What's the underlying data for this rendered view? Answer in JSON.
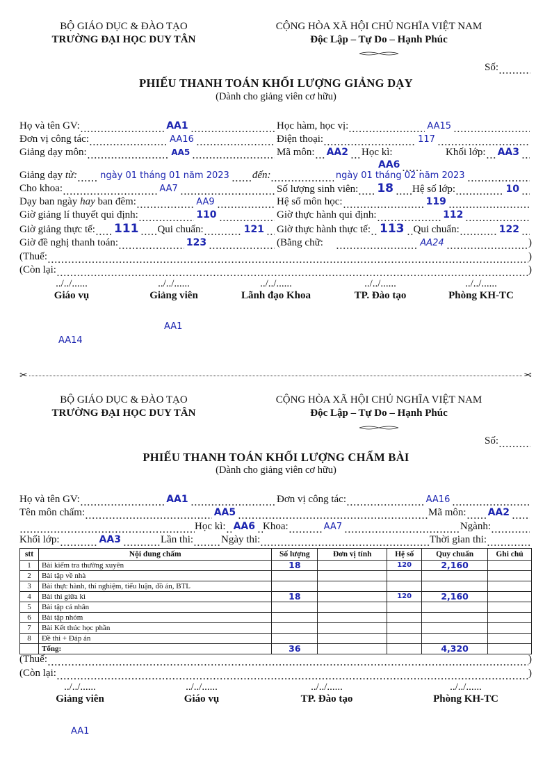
{
  "form1": {
    "header_left": {
      "ministry": "BỘ GIÁO DỤC & ĐÀO TẠO",
      "school": "TRƯỜNG ĐẠI HỌC DUY TÂN"
    },
    "header_right": {
      "country": "CỘNG HÒA XÃ HỘI CHỦ NGHĨA VIỆT NAM",
      "motto": "Độc Lập – Tự Do – Hạnh Phúc"
    },
    "so_label": "Số:",
    "title": "PHIẾU THANH TOÁN KHỐI LƯỢNG GIẢNG DẠY",
    "subtitle": "(Dành cho giảng viên cơ hữu)",
    "fields": {
      "ho_ten_label": "Họ và tên GV:",
      "ho_ten": "AA1",
      "hoc_ham_label": "Học hàm, học vị:",
      "hoc_ham": "AA15",
      "don_vi_label": "Đơn vị công tác:",
      "don_vi": "AA16",
      "dien_thoai_label": "Điện thoại:",
      "dien_thoai": "117",
      "mon_label": "Giảng dạy môn:",
      "mon": "AA5",
      "ma_mon_label": "Mã môn:",
      "ma_mon": "AA2",
      "hoc_ki_label": "Học kì:",
      "hoc_ki": "AA6",
      "khoi_lop_label": "Khối lớp:",
      "khoi_lop": "AA3",
      "tu_label": "Giảng dạy",
      "tu_word": "từ:",
      "tu": "ngày 01 tháng 01 năm 2023",
      "den_label": "đến:",
      "den": "ngày 01 tháng 02 năm 2023",
      "khoa_label": "Cho khoa:",
      "khoa": "AA7",
      "so_sv_label": "Số lượng sinh viên:",
      "so_sv": "18",
      "he_so_lop_label": "Hệ số lớp:",
      "he_so_lop": "10",
      "day_label_a": "Dạy ban ngày",
      "day_label_hay": "hay",
      "day_label_b": "ban đêm:",
      "day": "AA9",
      "he_so_mon_label": "Hệ số môn học:",
      "he_so_mon": "119",
      "gio_lt_qd_label": "Giờ giảng lí thuyết qui định:",
      "gio_lt_qd": "110",
      "gio_th_qd_label": "Giờ thực hành qui định:",
      "gio_th_qd": "112",
      "gio_lt_tt_label": "Giờ giảng thực tế:",
      "gio_lt_tt": "111",
      "qc1_label": "Qui chuẩn:",
      "qc1": "121",
      "gio_th_tt_label": "Giờ thực hành thực tế:",
      "gio_th_tt": "113",
      "qc2_label": "Qui chuẩn:",
      "qc2": "122",
      "de_nghi_label": "Giờ đề nghị thanh toán:",
      "de_nghi": "123",
      "bang_chu_label": "(Bằng chữ:",
      "bang_chu": "AA24",
      "thue_label": "(Thuế:",
      "con_lai_label": "(Còn lại:",
      "close_paren": ")"
    },
    "date_placeholder": "../../......",
    "signatures": [
      "Giáo vụ",
      "Giảng viên",
      "Lãnh đạo Khoa",
      "TP. Đào tạo",
      "Phòng KH-TC"
    ],
    "extra_values": {
      "aa1": "AA1",
      "aa14": "AA14"
    }
  },
  "form2": {
    "header_left": {
      "ministry": "BỘ GIÁO DỤC & ĐÀO TẠO",
      "school": "TRƯỜNG ĐẠI HỌC DUY TÂN"
    },
    "header_right": {
      "country": "CỘNG HÒA XÃ HỘI CHỦ NGHĨA VIỆT NAM",
      "motto": "Độc Lập – Tự Do – Hạnh Phúc"
    },
    "so_label": "Số:",
    "title": "PHIẾU THANH TOÁN KHỐI LƯỢNG CHẤM BÀI",
    "subtitle": "(Dành cho giảng viên cơ hữu)",
    "fields": {
      "ho_ten_label": "Họ và tên GV:",
      "ho_ten": "AA1",
      "don_vi_label": "Đơn vị công tác:",
      "don_vi": "AA16",
      "mon_label": "Tên môn chấm:",
      "mon": "AA5",
      "ma_mon_label": "Mã môn:",
      "ma_mon": "AA2",
      "hoc_ki_label": "Học kì:",
      "hoc_ki": "AA6",
      "khoa_label": "Khoa:",
      "khoa": "AA7",
      "nganh_label": "Ngành:",
      "khoi_lop_label": "Khối lớp:",
      "khoi_lop": "AA3",
      "lan_thi_label": "Lần thi:",
      "ngay_thi_label": "Ngày thi:",
      "thoi_gian_label": "Thời gian thi:",
      "thue_label": "(Thuế:",
      "con_lai_label": "(Còn lại:",
      "close_paren": ")"
    },
    "table": {
      "headers": [
        "stt",
        "Nội dung chấm",
        "Số lượng",
        "Đơn vị tính",
        "Hệ số",
        "Quy chuẩn",
        "Ghi chú"
      ],
      "rows": [
        {
          "stt": "1",
          "content": "Bài kiểm tra thường xuyên",
          "qty": "18",
          "unit": "",
          "coef": "120",
          "norm": "2,160",
          "note": ""
        },
        {
          "stt": "2",
          "content": "Bài tập về nhà",
          "qty": "",
          "unit": "",
          "coef": "",
          "norm": "",
          "note": ""
        },
        {
          "stt": "3",
          "content": "Bài thực hành, thí nghiệm, tiểu luận, đồ án, BTL",
          "qty": "",
          "unit": "",
          "coef": "",
          "norm": "",
          "note": ""
        },
        {
          "stt": "4",
          "content": "Bài thi giữa kì",
          "qty": "18",
          "unit": "",
          "coef": "120",
          "norm": "2,160",
          "note": ""
        },
        {
          "stt": "5",
          "content": "Bài tập cá nhân",
          "qty": "",
          "unit": "",
          "coef": "",
          "norm": "",
          "note": ""
        },
        {
          "stt": "6",
          "content": "Bài tập nhóm",
          "qty": "",
          "unit": "",
          "coef": "",
          "norm": "",
          "note": ""
        },
        {
          "stt": "7",
          "content": "Bài Kết thúc học phần",
          "qty": "",
          "unit": "",
          "coef": "",
          "norm": "",
          "note": ""
        },
        {
          "stt": "8",
          "content": "Đề thi + Đáp án",
          "qty": "",
          "unit": "",
          "coef": "",
          "norm": "",
          "note": ""
        }
      ],
      "total": {
        "label": "Tổng:",
        "qty": "36",
        "norm": "4,320"
      }
    },
    "date_placeholder": "../../......",
    "signatures": [
      "Giảng viên",
      "Giáo vụ",
      "TP. Đào tạo",
      "Phòng KH-TC"
    ],
    "extra_values": {
      "aa1": "AA1"
    }
  },
  "icons": {
    "scissors": "scissors-icon"
  },
  "colors": {
    "value_blue": "#1c25b0"
  }
}
